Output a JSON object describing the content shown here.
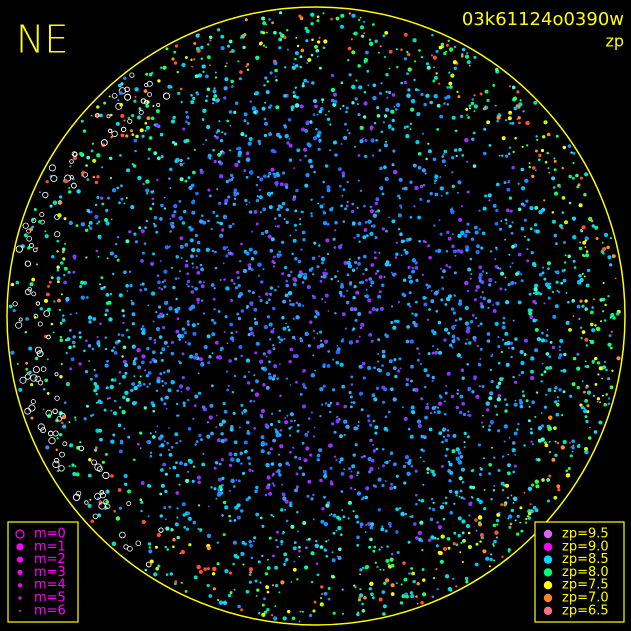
{
  "chart_data": {
    "type": "skymap",
    "title": "NE",
    "image_id": "03k61124o0390w",
    "subtitle": "zp",
    "magnitude_legend": [
      "m=0",
      "m=1",
      "m=2",
      "m=3",
      "m=4",
      "m=5",
      "m=6"
    ],
    "zp_legend": [
      {
        "label": "zp=9.5",
        "color": "#e060ff"
      },
      {
        "label": "zp=9.0",
        "color": "#ff00ff"
      },
      {
        "label": "zp=8.5",
        "color": "#00d8ff"
      },
      {
        "label": "zp=8.0",
        "color": "#00ff70"
      },
      {
        "label": "zp=7.5",
        "color": "#ffff00"
      },
      {
        "label": "zp=7.0",
        "color": "#ff8020"
      },
      {
        "label": "zp=6.5",
        "color": "#ff7080"
      }
    ]
  }
}
